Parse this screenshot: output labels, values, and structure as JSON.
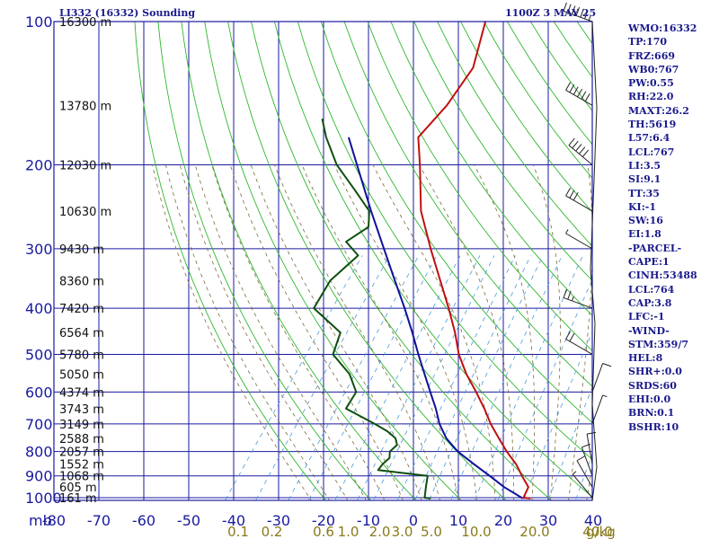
{
  "header": {
    "title": "LI332 (16332) Sounding",
    "datetime": "1100Z  3 MAY 25"
  },
  "indices": [
    "WMO:16332",
    "TP:170",
    "FRZ:669",
    "WB0:767",
    "PW:0.55",
    "RH:22.0",
    "MAXT:26.2",
    "TH:5619",
    "L57:6.4",
    "LCL:767",
    "LI:3.5",
    "SI:9.1",
    "TT:35",
    "KI:-1",
    "SW:16",
    "EI:1.8",
    "-PARCEL-",
    "CAPE:1",
    "CINH:53488",
    "LCL:764",
    "CAP:3.8",
    "LFC:-1",
    "-WIND-",
    "STM:359/7",
    "HEL:8",
    "SHR+:0.0",
    "SRDS:60",
    "EHI:0.0",
    "BRN:0.1",
    "BSHR:10"
  ],
  "colors": {
    "frame": "#1a1aa0",
    "grid": "#1a1aa0",
    "dry_adiabat": "#2db82d",
    "moist_adiabat": "#7a6a3a",
    "mixing_ratio": "#4a9ad8",
    "temperature": "#c01010",
    "dewpoint": "#0f4f0f",
    "parcel": "#10109a",
    "mr_label": "#8a7a1a",
    "wind": "#222222"
  },
  "chart_data": {
    "type": "skew-t",
    "pressure_unit": "mb",
    "mixing_ratio_unit": "g/kg",
    "ylim": [
      1000,
      100
    ],
    "xlim": [
      -80,
      40
    ],
    "pressure_ticks": [
      100,
      200,
      300,
      400,
      500,
      600,
      700,
      800,
      900,
      1000
    ],
    "temperature_ticks": [
      -80,
      -70,
      -60,
      -50,
      -40,
      -30,
      -20,
      -10,
      0,
      10,
      20,
      30,
      40
    ],
    "temperature_tick_labels": [
      "-80",
      "-70",
      "-60",
      "-50",
      "-40",
      "-30",
      "-20",
      "-10",
      "0",
      "10",
      "20",
      "30",
      "40"
    ],
    "height_labels": [
      {
        "p": 100,
        "label": "16300 m"
      },
      {
        "p": 150,
        "label": "13780 m"
      },
      {
        "p": 200,
        "label": "12030 m"
      },
      {
        "p": 250,
        "label": "10630 m"
      },
      {
        "p": 300,
        "label": "9430 m"
      },
      {
        "p": 350,
        "label": "8360 m"
      },
      {
        "p": 400,
        "label": "7420 m"
      },
      {
        "p": 450,
        "label": "6564 m"
      },
      {
        "p": 500,
        "label": "5780 m"
      },
      {
        "p": 550,
        "label": "5050 m"
      },
      {
        "p": 600,
        "label": "4374 m"
      },
      {
        "p": 650,
        "label": "3743 m"
      },
      {
        "p": 700,
        "label": "3149 m"
      },
      {
        "p": 750,
        "label": "2588 m"
      },
      {
        "p": 800,
        "label": "2057 m"
      },
      {
        "p": 850,
        "label": "1552 m"
      },
      {
        "p": 900,
        "label": "1068 m"
      },
      {
        "p": 950,
        "label": "605 m"
      },
      {
        "p": 1000,
        "label": "161 m"
      }
    ],
    "mixing_ratio_labels": [
      "0.1",
      "0.2",
      "0.6",
      "1.0",
      "2.0",
      "3.0",
      "5.0",
      "10.0",
      "20.0",
      "40.0"
    ],
    "mixing_ratio_label_temps": [
      -39,
      -31.5,
      -20,
      -14.5,
      -7.5,
      -2.5,
      4,
      14,
      27,
      41
    ],
    "series": [
      {
        "name": "temperature",
        "points": [
          [
            1004,
            26.2
          ],
          [
            1000,
            24.5
          ],
          [
            950,
            23.8
          ],
          [
            900,
            20.5
          ],
          [
            850,
            17.2
          ],
          [
            800,
            13.0
          ],
          [
            750,
            9.0
          ],
          [
            700,
            4.8
          ],
          [
            650,
            0.8
          ],
          [
            600,
            -3.8
          ],
          [
            550,
            -9.0
          ],
          [
            500,
            -14.0
          ],
          [
            450,
            -18.5
          ],
          [
            400,
            -24.0
          ],
          [
            350,
            -30.5
          ],
          [
            300,
            -38.0
          ],
          [
            250,
            -46.5
          ],
          [
            200,
            -54.5
          ],
          [
            175,
            -59.5
          ],
          [
            150,
            -58.5
          ],
          [
            125,
            -59.0
          ],
          [
            100,
            -64.0
          ]
        ]
      },
      {
        "name": "dewpoint",
        "points": [
          [
            1004,
            4.0
          ],
          [
            1000,
            2.5
          ],
          [
            950,
            1.0
          ],
          [
            900,
            -0.5
          ],
          [
            875,
            -12.5
          ],
          [
            850,
            -12.5
          ],
          [
            825,
            -12.0
          ],
          [
            800,
            -13.0
          ],
          [
            775,
            -12.5
          ],
          [
            750,
            -14.0
          ],
          [
            725,
            -17.0
          ],
          [
            700,
            -21.0
          ],
          [
            650,
            -30.0
          ],
          [
            600,
            -30.5
          ],
          [
            550,
            -35.0
          ],
          [
            500,
            -42.0
          ],
          [
            450,
            -44.0
          ],
          [
            400,
            -54.0
          ],
          [
            350,
            -55.0
          ],
          [
            310,
            -53.0
          ],
          [
            290,
            -58.0
          ],
          [
            270,
            -55.5
          ],
          [
            250,
            -58.0
          ],
          [
            225,
            -65.0
          ],
          [
            200,
            -73.0
          ],
          [
            175,
            -80.0
          ],
          [
            160,
            -84.0
          ]
        ]
      },
      {
        "name": "parcel",
        "points": [
          [
            1004,
            24.5
          ],
          [
            950,
            18.4
          ],
          [
            900,
            13.3
          ],
          [
            850,
            7.8
          ],
          [
            800,
            2.1
          ],
          [
            750,
            -2.7
          ],
          [
            700,
            -6.6
          ],
          [
            650,
            -10.0
          ],
          [
            600,
            -14.0
          ],
          [
            550,
            -18.3
          ],
          [
            500,
            -23.0
          ],
          [
            450,
            -28.0
          ],
          [
            400,
            -33.8
          ],
          [
            350,
            -40.6
          ],
          [
            300,
            -48.4
          ],
          [
            250,
            -57.6
          ],
          [
            200,
            -68.5
          ],
          [
            175,
            -75.0
          ]
        ]
      }
    ],
    "wind_barbs": [
      {
        "p": 1000,
        "dir": 320,
        "kt": 5
      },
      {
        "p": 950,
        "dir": 330,
        "kt": 10
      },
      {
        "p": 900,
        "dir": 340,
        "kt": 10
      },
      {
        "p": 850,
        "dir": 350,
        "kt": 10
      },
      {
        "p": 700,
        "dir": 20,
        "kt": 5
      },
      {
        "p": 600,
        "dir": 20,
        "kt": 10
      },
      {
        "p": 500,
        "dir": 300,
        "kt": 20
      },
      {
        "p": 400,
        "dir": 290,
        "kt": 25
      },
      {
        "p": 300,
        "dir": 300,
        "kt": 5
      },
      {
        "p": 250,
        "dir": 300,
        "kt": 30
      },
      {
        "p": 200,
        "dir": 310,
        "kt": 50
      },
      {
        "p": 150,
        "dir": 300,
        "kt": 60
      },
      {
        "p": 100,
        "dir": 290,
        "kt": 65
      }
    ]
  }
}
